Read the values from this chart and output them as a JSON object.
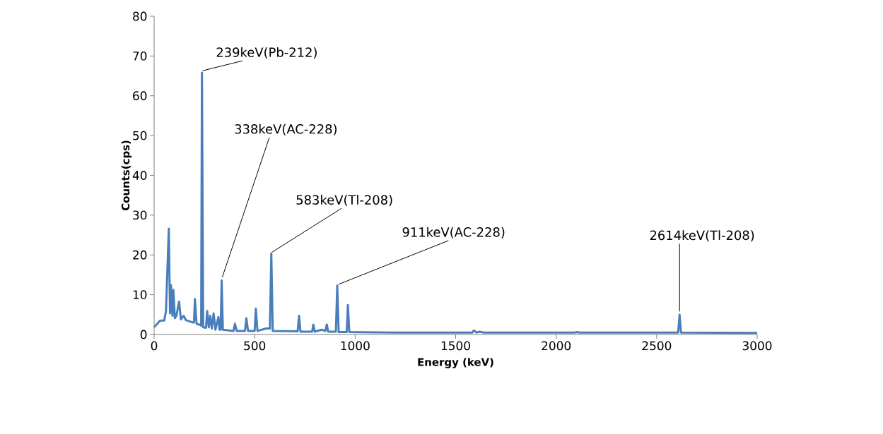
{
  "chart_data": {
    "type": "line",
    "xlabel": "Energy (keV)",
    "ylabel": "Counts(cps)",
    "xlim": [
      0,
      3000
    ],
    "ylim": [
      0,
      80
    ],
    "xticks": [
      0,
      500,
      1000,
      1500,
      2000,
      2500,
      3000
    ],
    "yticks": [
      0,
      10,
      20,
      30,
      40,
      50,
      60,
      70,
      80
    ],
    "grid": false,
    "marker": "none",
    "line_style": "solid",
    "series": [
      {
        "color": "#4a7ebb",
        "x": [
          0,
          12,
          30,
          50,
          59,
          73,
          79,
          84,
          91,
          96,
          103,
          111,
          124,
          133,
          147,
          158,
          194,
          198,
          203,
          211,
          229,
          234,
          238,
          244,
          258,
          264,
          272,
          279,
          287,
          296,
          305,
          320,
          325,
          331,
          336,
          342,
          395,
          402,
          411,
          452,
          459,
          467,
          500,
          506,
          514,
          557,
          576,
          583,
          590,
          714,
          721,
          728,
          786,
          792,
          799,
          833,
          852,
          859,
          866,
          904,
          911,
          918,
          958,
          964,
          971,
          1200,
          1583,
          1590,
          1605,
          1620,
          1640,
          2095,
          2100,
          2115,
          2607,
          2614,
          2621,
          3000
        ],
        "values": [
          1.8,
          2.5,
          3.5,
          3.5,
          5.9,
          26.6,
          5.3,
          12.4,
          4.7,
          11.2,
          4.1,
          4.7,
          8.3,
          3.8,
          4.7,
          3.6,
          3.0,
          3.0,
          8.9,
          2.7,
          2.4,
          2.2,
          65.8,
          1.8,
          1.7,
          5.9,
          1.8,
          4.7,
          1.5,
          5.3,
          1.2,
          4.4,
          1.2,
          1.2,
          13.6,
          1.2,
          0.9,
          2.7,
          0.9,
          0.9,
          4.1,
          0.9,
          0.9,
          6.5,
          0.9,
          1.5,
          1.5,
          20.4,
          0.9,
          0.8,
          4.7,
          0.7,
          0.7,
          2.5,
          0.7,
          1.2,
          0.9,
          2.5,
          0.7,
          0.7,
          12.3,
          0.6,
          0.6,
          7.4,
          0.6,
          0.5,
          0.5,
          1.0,
          0.5,
          0.7,
          0.5,
          0.5,
          0.6,
          0.5,
          0.5,
          5.0,
          0.5,
          0.4
        ]
      }
    ],
    "annotations": [
      {
        "text": "239keV(Pb-212)",
        "x": 238,
        "y": 65.8
      },
      {
        "text": "338keV(AC-228)",
        "x": 336,
        "y": 13.6
      },
      {
        "text": "583keV(Tl-208)",
        "x": 583,
        "y": 20.4
      },
      {
        "text": "911keV(AC-228)",
        "x": 911,
        "y": 12.3
      },
      {
        "text": "2614keV(Tl-208)",
        "x": 2614,
        "y": 5.0
      }
    ]
  }
}
